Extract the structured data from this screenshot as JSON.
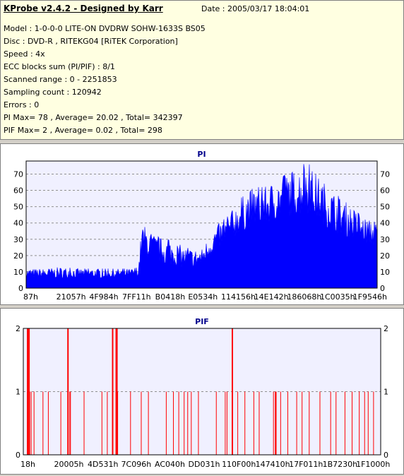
{
  "header": {
    "title": "KProbe v2.4.2 - Designed by Karr",
    "date": "Date : 2005/03/17 18:04:01",
    "lines": [
      "Model : 1-0-0-0 LITE-ON DVDRW SOHW-1633S BS05",
      "Disc : DVD-R , RITEKG04 [RiTEK Corporation]",
      "Speed : 4x",
      "ECC blocks sum (PI/PIF) : 8/1",
      "Scanned range : 0 - 2251853",
      "Sampling count : 120942",
      "Errors : 0",
      "PI Max= 78 , Average= 20.02 , Total= 342397",
      "PIF Max= 2 , Average= 0.02 , Total= 298"
    ]
  },
  "chart_data": [
    {
      "type": "area",
      "title": "PI",
      "color": "#0000ff",
      "ylim": [
        0,
        78
      ],
      "yticks": [
        0,
        10,
        20,
        30,
        40,
        50,
        60,
        70
      ],
      "xtick_labels": [
        "87h",
        "21057h",
        "4F984h",
        "7FF11h",
        "B0418h",
        "E0534h",
        "114156h",
        "14E142h",
        "186068h",
        "1C0035h",
        "1F9546h"
      ],
      "grid": true,
      "envelope_x": [
        0,
        0.05,
        0.1,
        0.15,
        0.2,
        0.25,
        0.3,
        0.32,
        0.33,
        0.35,
        0.37,
        0.4,
        0.43,
        0.45,
        0.48,
        0.5,
        0.53,
        0.55,
        0.58,
        0.6,
        0.63,
        0.65,
        0.68,
        0.7,
        0.73,
        0.75,
        0.78,
        0.8,
        0.82,
        0.85,
        0.88,
        0.9,
        0.93,
        0.95,
        0.98,
        1.0
      ],
      "envelope_max": [
        12,
        12,
        13,
        12,
        12,
        12,
        12,
        14,
        40,
        36,
        32,
        30,
        28,
        25,
        24,
        24,
        35,
        40,
        45,
        52,
        60,
        62,
        62,
        65,
        68,
        72,
        74,
        78,
        72,
        65,
        58,
        55,
        50,
        45,
        42,
        40
      ],
      "envelope_base": [
        6,
        6,
        6,
        6,
        6,
        6,
        6,
        7,
        20,
        18,
        16,
        14,
        13,
        12,
        12,
        13,
        20,
        24,
        28,
        32,
        36,
        38,
        38,
        40,
        42,
        44,
        44,
        46,
        42,
        38,
        34,
        32,
        30,
        28,
        26,
        24
      ]
    },
    {
      "type": "bar",
      "title": "PIF",
      "color": "#ff0000",
      "ylim": [
        0,
        2
      ],
      "yticks": [
        0,
        1,
        2
      ],
      "xtick_labels": [
        "18h",
        "20005h",
        "4D531h",
        "7C096h",
        "AC040h",
        "DD031h",
        "110F00h",
        "147410h",
        "17F011h",
        "1B7230h",
        "1F1000h"
      ],
      "grid": true,
      "spikes_x": [
        0.012,
        0.016,
        0.018,
        0.022,
        0.03,
        0.055,
        0.07,
        0.105,
        0.125,
        0.13,
        0.132,
        0.17,
        0.22,
        0.235,
        0.25,
        0.26,
        0.262,
        0.264,
        0.3,
        0.33,
        0.35,
        0.4,
        0.42,
        0.435,
        0.45,
        0.46,
        0.47,
        0.49,
        0.54,
        0.565,
        0.57,
        0.585,
        0.6,
        0.62,
        0.645,
        0.66,
        0.7,
        0.72,
        0.705,
        0.706,
        0.7075,
        0.74,
        0.765,
        0.78,
        0.8,
        0.83,
        0.86,
        0.875,
        0.9,
        0.92,
        0.94,
        0.955,
        0.965,
        0.98
      ],
      "spikes_val": [
        2,
        2,
        1,
        1,
        1,
        1,
        1,
        1,
        2,
        1,
        1,
        1,
        1,
        1,
        2,
        2,
        2,
        1,
        1,
        1,
        1,
        1,
        1,
        1,
        1,
        1,
        1,
        1,
        1,
        1,
        1,
        2,
        1,
        1,
        1,
        1,
        1,
        1,
        1,
        1,
        1,
        1,
        1,
        1,
        1,
        1,
        1,
        1,
        1,
        1,
        1,
        1,
        1,
        1
      ]
    }
  ]
}
